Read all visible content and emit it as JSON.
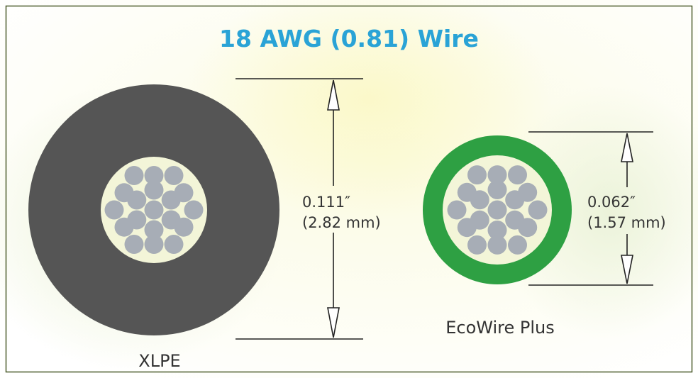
{
  "title": "18 AWG (0.81) Wire",
  "wires": [
    {
      "name": "XLPE",
      "dimension_in": "0.111″",
      "dimension_mm": "(2.82 mm)",
      "insulation_color": "#555555"
    },
    {
      "name": "EcoWire Plus",
      "dimension_in": "0.062″",
      "dimension_mm": "(1.57 mm)",
      "insulation_color": "#2ea043"
    }
  ],
  "colors": {
    "title": "#2aa3d6",
    "conductor_fill": "#f3f5d8",
    "strand": "#a7adb6",
    "frame": "#4a5a2a",
    "text": "#333333"
  }
}
